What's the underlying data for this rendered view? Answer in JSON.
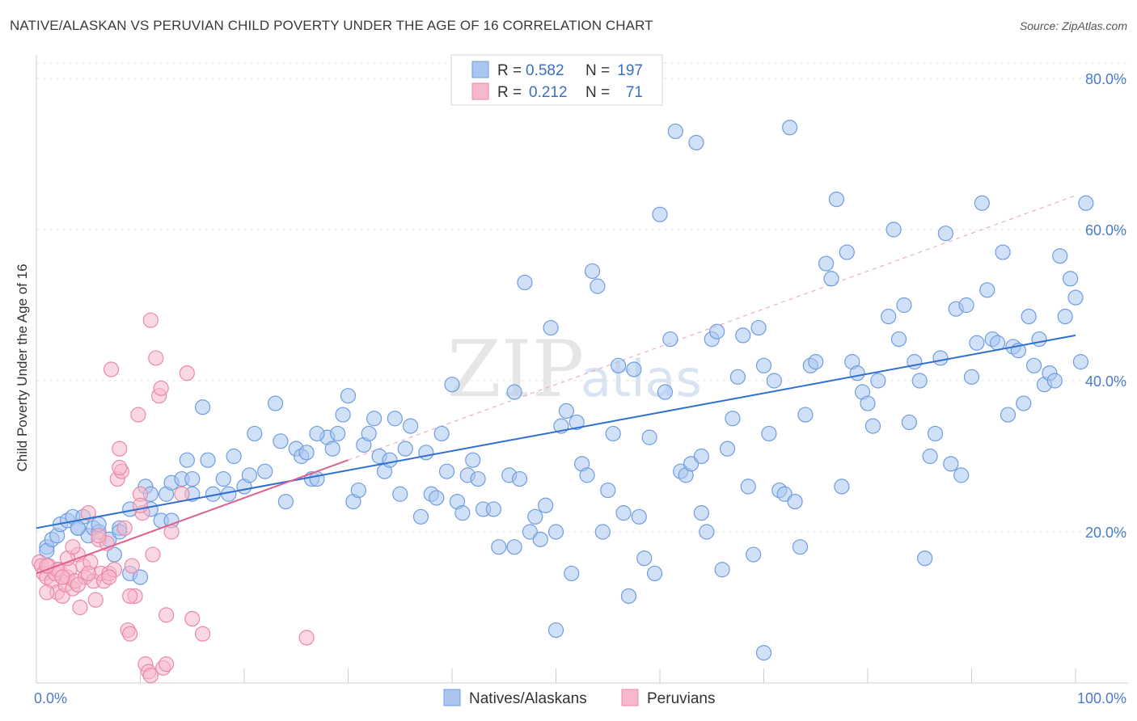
{
  "title": "NATIVE/ALASKAN VS PERUVIAN CHILD POVERTY UNDER THE AGE OF 16 CORRELATION CHART",
  "source": "Source: ZipAtlas.com",
  "watermark": {
    "zip": "ZIP",
    "atlas": "atlas"
  },
  "colors": {
    "blue_fill": "#aac6ee",
    "blue_stroke": "#6f9de0",
    "blue_line": "#2f6fd0",
    "pink_fill": "#f6b8cb",
    "pink_stroke": "#ea89a8",
    "pink_line": "#e0608d",
    "grid": "#e4e4e4",
    "axis_text": "#4a7cc9"
  },
  "chart_data": {
    "type": "scatter",
    "title": "NATIVE/ALASKAN VS PERUVIAN CHILD POVERTY UNDER THE AGE OF 16 CORRELATION CHART",
    "xlabel": "",
    "ylabel": "Child Poverty Under the Age of 16",
    "xlim": [
      0,
      100
    ],
    "ylim": [
      0,
      84
    ],
    "x_tick_labels": [
      {
        "value": 0,
        "label": "0.0%"
      },
      {
        "value": 100,
        "label": "100.0%"
      }
    ],
    "y_tick_labels": [
      {
        "value": 20,
        "label": "20.0%"
      },
      {
        "value": 40,
        "label": "40.0%"
      },
      {
        "value": 60,
        "label": "60.0%"
      },
      {
        "value": 80,
        "label": "80.0%"
      }
    ],
    "x_minor_ticks": [
      10,
      20,
      30,
      40,
      50,
      60,
      70,
      80,
      90,
      100
    ],
    "legend": {
      "position": "top-center",
      "entries": [
        {
          "r_label": "R =",
          "r_value": "0.582",
          "n_label": "N =",
          "n_value": "197"
        },
        {
          "r_label": "R =",
          "r_value": "0.212",
          "n_label": "N =",
          "n_value": "71"
        }
      ]
    },
    "series": [
      {
        "name": "Natives/Alaskans",
        "trendline": {
          "x0": 0,
          "y0": 20.5,
          "x1": 100,
          "y1": 46.0
        },
        "points": [
          [
            1,
            18
          ],
          [
            1,
            17.5
          ],
          [
            1.5,
            19
          ],
          [
            2,
            19.5
          ],
          [
            2.3,
            21
          ],
          [
            3,
            21.5
          ],
          [
            3.5,
            22
          ],
          [
            4,
            20.5
          ],
          [
            4.5,
            22
          ],
          [
            5,
            19.5
          ],
          [
            5.5,
            20.5
          ],
          [
            6,
            20
          ],
          [
            7,
            19
          ],
          [
            7.5,
            17
          ],
          [
            8,
            20.5
          ],
          [
            9,
            14.5
          ],
          [
            9,
            23
          ],
          [
            10.5,
            26
          ],
          [
            11,
            25
          ],
          [
            11,
            23
          ],
          [
            12,
            21.5
          ],
          [
            12.5,
            25
          ],
          [
            13,
            21.5
          ],
          [
            13,
            26.5
          ],
          [
            14,
            27
          ],
          [
            14.5,
            29.5
          ],
          [
            15,
            27
          ],
          [
            16,
            36.5
          ],
          [
            16.5,
            29.5
          ],
          [
            17,
            25
          ],
          [
            18,
            27
          ],
          [
            18.5,
            25
          ],
          [
            19,
            30
          ],
          [
            20,
            26
          ],
          [
            20.5,
            27.5
          ],
          [
            21,
            33
          ],
          [
            22,
            28
          ],
          [
            23,
            37
          ],
          [
            23.5,
            32
          ],
          [
            24,
            24
          ],
          [
            25,
            31
          ],
          [
            25.5,
            30
          ],
          [
            26,
            30.5
          ],
          [
            26.5,
            27
          ],
          [
            27,
            27
          ],
          [
            28,
            32.5
          ],
          [
            28.5,
            31
          ],
          [
            29,
            33
          ],
          [
            29.5,
            35.5
          ],
          [
            30,
            38
          ],
          [
            30.5,
            24
          ],
          [
            31,
            25.5
          ],
          [
            31.5,
            31.5
          ],
          [
            32,
            33
          ],
          [
            32.5,
            35
          ],
          [
            33,
            30
          ],
          [
            33.5,
            28
          ],
          [
            34,
            29.5
          ],
          [
            34.5,
            35
          ],
          [
            35,
            25
          ],
          [
            35.5,
            31
          ],
          [
            36,
            34
          ],
          [
            37,
            22
          ],
          [
            37.5,
            30.5
          ],
          [
            38,
            25
          ],
          [
            38.5,
            24.5
          ],
          [
            39,
            33
          ],
          [
            39.5,
            28
          ],
          [
            40,
            39.5
          ],
          [
            40.5,
            24
          ],
          [
            41,
            22.5
          ],
          [
            41.5,
            27.5
          ],
          [
            42,
            29.5
          ],
          [
            42.5,
            27
          ],
          [
            43,
            23
          ],
          [
            44,
            23
          ],
          [
            44.5,
            18
          ],
          [
            45.5,
            27.5
          ],
          [
            46,
            38.5
          ],
          [
            46.5,
            27
          ],
          [
            47,
            53
          ],
          [
            47.5,
            20
          ],
          [
            48,
            22
          ],
          [
            48.5,
            19
          ],
          [
            49,
            23.5
          ],
          [
            49.5,
            47
          ],
          [
            50,
            20
          ],
          [
            50.5,
            34
          ],
          [
            51,
            36
          ],
          [
            51.5,
            14.5
          ],
          [
            52,
            34.5
          ],
          [
            52.5,
            29
          ],
          [
            53,
            27.5
          ],
          [
            53.5,
            54.5
          ],
          [
            54,
            52.5
          ],
          [
            54.5,
            20
          ],
          [
            55,
            25.5
          ],
          [
            55.5,
            33
          ],
          [
            56,
            42
          ],
          [
            56.5,
            22.5
          ],
          [
            57,
            11.5
          ],
          [
            57.5,
            41.5
          ],
          [
            58,
            22
          ],
          [
            58.5,
            16.5
          ],
          [
            59,
            32.5
          ],
          [
            59.5,
            14.5
          ],
          [
            60,
            62
          ],
          [
            60.5,
            38.5
          ],
          [
            61,
            45.5
          ],
          [
            61.5,
            73
          ],
          [
            62,
            28
          ],
          [
            62.5,
            27.5
          ],
          [
            63,
            29
          ],
          [
            63.5,
            71.5
          ],
          [
            64,
            22.5
          ],
          [
            64.5,
            20
          ],
          [
            65,
            45.5
          ],
          [
            65.5,
            46.5
          ],
          [
            66,
            15
          ],
          [
            66.5,
            31
          ],
          [
            67,
            35
          ],
          [
            67.5,
            40.5
          ],
          [
            68,
            46
          ],
          [
            68.5,
            26
          ],
          [
            69,
            17
          ],
          [
            69.5,
            47
          ],
          [
            70,
            42
          ],
          [
            70.5,
            33
          ],
          [
            71,
            40
          ],
          [
            71.5,
            25.5
          ],
          [
            72,
            25
          ],
          [
            72.5,
            73.5
          ],
          [
            73,
            24
          ],
          [
            73.5,
            18
          ],
          [
            74,
            35.5
          ],
          [
            74.5,
            42
          ],
          [
            75,
            42.5
          ],
          [
            76,
            55.5
          ],
          [
            76.5,
            53.5
          ],
          [
            77,
            64
          ],
          [
            77.5,
            26
          ],
          [
            78,
            57
          ],
          [
            78.5,
            42.5
          ],
          [
            79,
            41
          ],
          [
            79.5,
            38.5
          ],
          [
            80,
            37
          ],
          [
            80.5,
            34
          ],
          [
            81,
            40
          ],
          [
            82,
            48.5
          ],
          [
            82.5,
            60
          ],
          [
            83,
            45.5
          ],
          [
            83.5,
            50
          ],
          [
            84,
            34.5
          ],
          [
            84.5,
            42.5
          ],
          [
            85,
            40
          ],
          [
            85.5,
            16.5
          ],
          [
            86,
            30
          ],
          [
            86.5,
            33
          ],
          [
            87,
            43
          ],
          [
            87.5,
            59.5
          ],
          [
            88,
            29
          ],
          [
            88.5,
            49.5
          ],
          [
            89,
            27.5
          ],
          [
            89.5,
            50
          ],
          [
            90,
            40.5
          ],
          [
            90.5,
            45
          ],
          [
            91,
            63.5
          ],
          [
            91.5,
            52
          ],
          [
            92,
            45.5
          ],
          [
            92.5,
            45
          ],
          [
            93,
            57
          ],
          [
            93.5,
            35.5
          ],
          [
            94,
            44.5
          ],
          [
            94.5,
            44
          ],
          [
            95,
            37
          ],
          [
            95.5,
            48.5
          ],
          [
            96,
            42
          ],
          [
            96.5,
            45.5
          ],
          [
            97,
            39.5
          ],
          [
            97.5,
            41
          ],
          [
            98,
            40
          ],
          [
            98.5,
            56.5
          ],
          [
            99,
            48.5
          ],
          [
            99.5,
            53.5
          ],
          [
            100,
            51
          ],
          [
            100.5,
            42.5
          ],
          [
            101,
            63.5
          ],
          [
            6,
            21
          ],
          [
            8,
            20
          ],
          [
            10,
            14
          ],
          [
            15,
            25
          ],
          [
            27,
            33
          ],
          [
            46,
            18
          ],
          [
            64,
            30
          ],
          [
            4,
            20.5
          ],
          [
            50,
            7
          ],
          [
            70,
            4
          ]
        ]
      },
      {
        "name": "Peruvians",
        "trendline": {
          "x0": 0,
          "y0": 14.5,
          "x1": 30,
          "y1": 29.5
        },
        "points": [
          [
            0.3,
            16
          ],
          [
            0.5,
            15.5
          ],
          [
            0.7,
            14.5
          ],
          [
            1,
            14
          ],
          [
            1.2,
            15.5
          ],
          [
            1.5,
            13.5
          ],
          [
            1.8,
            14.5
          ],
          [
            2,
            12
          ],
          [
            2.2,
            15
          ],
          [
            2.5,
            11.5
          ],
          [
            2.8,
            13
          ],
          [
            3,
            14
          ],
          [
            3.2,
            15
          ],
          [
            3.5,
            12.5
          ],
          [
            3.7,
            13.5
          ],
          [
            4,
            17
          ],
          [
            4.2,
            10
          ],
          [
            4.5,
            15.5
          ],
          [
            4.7,
            14
          ],
          [
            5,
            22.5
          ],
          [
            5.2,
            16
          ],
          [
            5.5,
            13.5
          ],
          [
            5.7,
            11
          ],
          [
            6,
            19
          ],
          [
            6.2,
            14.5
          ],
          [
            6.5,
            13.5
          ],
          [
            6.8,
            18.5
          ],
          [
            7,
            14.5
          ],
          [
            7.2,
            41.5
          ],
          [
            7.5,
            15
          ],
          [
            7.8,
            27
          ],
          [
            8,
            31
          ],
          [
            8.2,
            28
          ],
          [
            8.5,
            20.5
          ],
          [
            8.8,
            7
          ],
          [
            9,
            6.5
          ],
          [
            9.2,
            15.5
          ],
          [
            9.5,
            11.5
          ],
          [
            9.8,
            35.5
          ],
          [
            10,
            25
          ],
          [
            10.2,
            22.5
          ],
          [
            10.5,
            2.5
          ],
          [
            10.8,
            1.5
          ],
          [
            11,
            48
          ],
          [
            11.2,
            17
          ],
          [
            11.5,
            43
          ],
          [
            11.8,
            38
          ],
          [
            12,
            39
          ],
          [
            12.2,
            2
          ],
          [
            12.5,
            9
          ],
          [
            13,
            20
          ],
          [
            14,
            25
          ],
          [
            14.5,
            41
          ],
          [
            15,
            8.5
          ],
          [
            16,
            6.5
          ],
          [
            2,
            15
          ],
          [
            3,
            16.5
          ],
          [
            4,
            13
          ],
          [
            5,
            14.5
          ],
          [
            6,
            19.5
          ],
          [
            7,
            14
          ],
          [
            8,
            28.5
          ],
          [
            9,
            11.5
          ],
          [
            10,
            23.5
          ],
          [
            11,
            1
          ],
          [
            12.5,
            2.5
          ],
          [
            1,
            12
          ],
          [
            2.5,
            14
          ],
          [
            3.5,
            18
          ],
          [
            26,
            6
          ],
          [
            1,
            15.5
          ]
        ]
      }
    ]
  }
}
